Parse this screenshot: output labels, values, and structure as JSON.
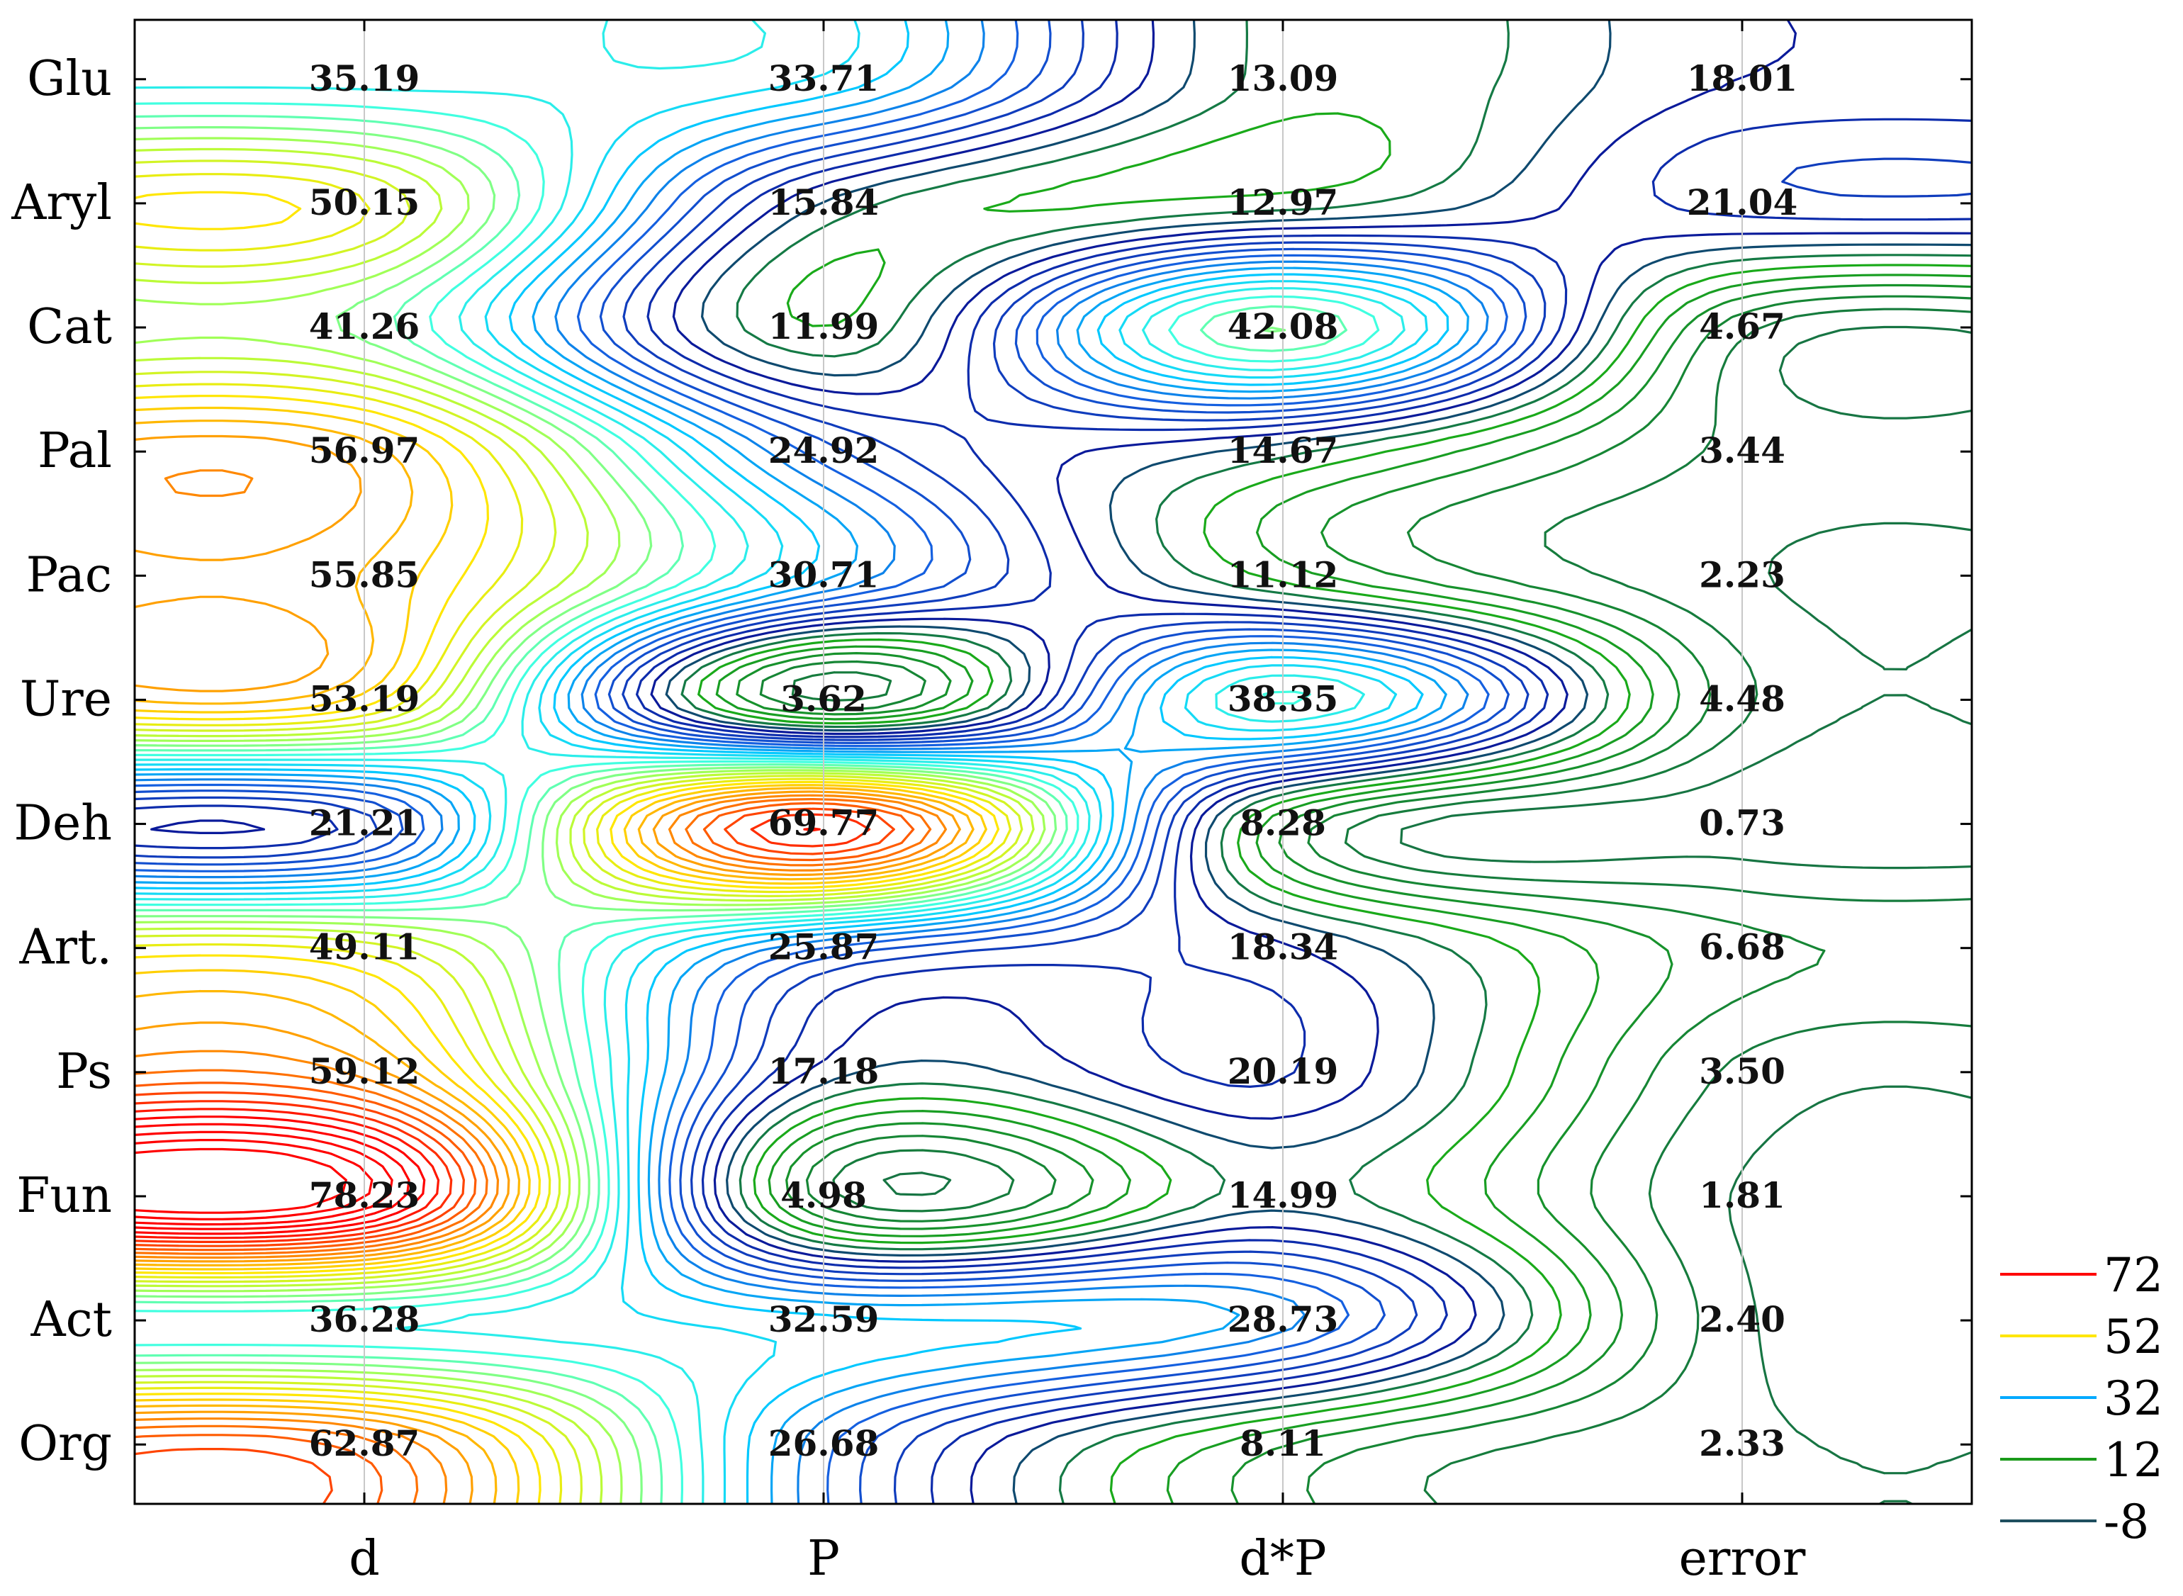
{
  "chart_data": {
    "type": "heatmap",
    "style": "contour",
    "title": "",
    "xlabel": "",
    "ylabel": "",
    "grid": true,
    "x_categories": [
      "d",
      "P",
      "d*P",
      "error"
    ],
    "y_categories": [
      "Glu",
      "Aryl",
      "Cat",
      "Pal",
      "Pac",
      "Ure",
      "Deh",
      "Art.",
      "Ps",
      "Fun",
      "Act",
      "Org"
    ],
    "values": [
      [
        35.19,
        33.71,
        13.09,
        18.01
      ],
      [
        50.15,
        15.84,
        12.97,
        21.04
      ],
      [
        41.26,
        11.99,
        42.08,
        4.67
      ],
      [
        56.97,
        24.92,
        14.67,
        3.44
      ],
      [
        55.85,
        30.71,
        11.12,
        2.23
      ],
      [
        53.19,
        3.62,
        38.35,
        4.48
      ],
      [
        21.21,
        69.77,
        8.28,
        0.73
      ],
      [
        49.11,
        25.87,
        18.34,
        6.68
      ],
      [
        59.12,
        17.18,
        20.19,
        3.5
      ],
      [
        78.23,
        4.98,
        14.99,
        1.81
      ],
      [
        36.28,
        32.59,
        28.73,
        2.4
      ],
      [
        62.87,
        26.68,
        8.11,
        2.33
      ]
    ],
    "value_labels": [
      [
        "35.19",
        "33.71",
        "13.09",
        "18.01"
      ],
      [
        "50.15",
        "15.84",
        "12.97",
        "21.04"
      ],
      [
        "41.26",
        "11.99",
        "42.08",
        "4.67"
      ],
      [
        "56.97",
        "24.92",
        "14.67",
        "3.44"
      ],
      [
        "55.85",
        "30.71",
        "11.12",
        "2.23"
      ],
      [
        "53.19",
        "3.62",
        "38.35",
        "4.48"
      ],
      [
        "21.21",
        "69.77",
        "8.28",
        "0.73"
      ],
      [
        "49.11",
        "25.87",
        "18.34",
        "6.68"
      ],
      [
        "59.12",
        "17.18",
        "20.19",
        "3.50"
      ],
      [
        "78.23",
        "4.98",
        "14.99",
        "1.81"
      ],
      [
        "36.28",
        "32.59",
        "28.73",
        "2.40"
      ],
      [
        "62.87",
        "26.68",
        "8.11",
        "2.33"
      ]
    ],
    "legend": {
      "position": "bottom-right",
      "entries": [
        {
          "label": "72",
          "level": 72,
          "color": "#ff0000"
        },
        {
          "label": "52",
          "level": 52,
          "color": "#ffe600"
        },
        {
          "label": "32",
          "level": 32,
          "color": "#00aaff"
        },
        {
          "label": "12",
          "level": 12,
          "color": "#1a9a1a"
        },
        {
          "label": "-8",
          "level": -8,
          "color": "#1f4f5f"
        }
      ]
    },
    "colormap": [
      {
        "level": -8,
        "color": "#1f4f5f"
      },
      {
        "level": 5,
        "color": "#15803a"
      },
      {
        "level": 12,
        "color": "#1aaa1a"
      },
      {
        "level": 18,
        "color": "#0a1a9a"
      },
      {
        "level": 26,
        "color": "#1560e0"
      },
      {
        "level": 32,
        "color": "#00c8ff"
      },
      {
        "level": 38,
        "color": "#40ffe0"
      },
      {
        "level": 45,
        "color": "#b0ff40"
      },
      {
        "level": 52,
        "color": "#ffe600"
      },
      {
        "level": 60,
        "color": "#ff8800"
      },
      {
        "level": 72,
        "color": "#ff0000"
      }
    ]
  }
}
